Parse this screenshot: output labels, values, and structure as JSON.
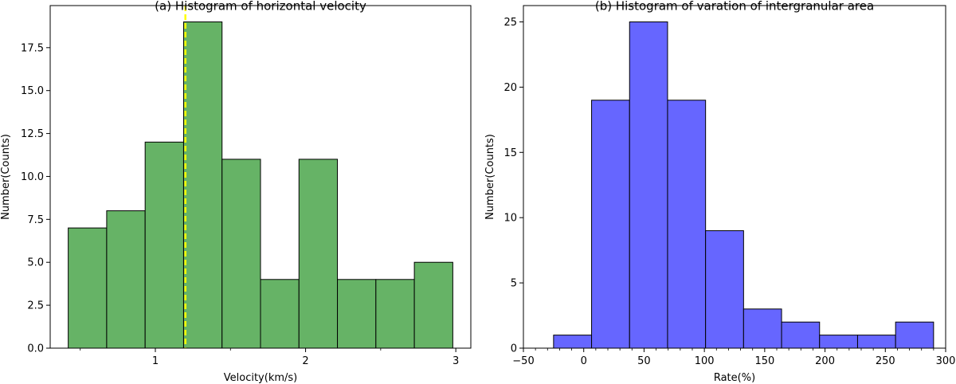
{
  "chart_data": [
    {
      "type": "bar",
      "title": "(a) Histogram of horizontal velocity",
      "xlabel": "Velocity(km/s)",
      "ylabel": "Number(Counts)",
      "bin_edges": [
        0.42,
        0.676,
        0.932,
        1.188,
        1.444,
        1.7,
        1.956,
        2.212,
        2.468,
        2.724,
        2.98
      ],
      "values": [
        7,
        8,
        12,
        19,
        11,
        4,
        11,
        4,
        4,
        5
      ],
      "xlim": [
        0.3,
        3.1
      ],
      "ylim": [
        0,
        19.95
      ],
      "xticks": [
        1,
        2,
        3
      ],
      "xtick_labels": [
        "1",
        "2",
        "3"
      ],
      "yticks": [
        0,
        2.5,
        5,
        7.5,
        10,
        12.5,
        15,
        17.5
      ],
      "ytick_labels": [
        "0.0",
        "2.5",
        "5.0",
        "7.5",
        "10.0",
        "12.5",
        "15.0",
        "17.5"
      ],
      "xminor": [
        0.5,
        1.5,
        2.5
      ],
      "vline": 1.2,
      "bar_color": "#66b366",
      "vline_color": "#ffff00",
      "grid": false
    },
    {
      "type": "bar",
      "title": "(b) Histogram of varation of intergranular area",
      "xlabel": "Rate(%)",
      "ylabel": "Number(Counts)",
      "bin_edges": [
        -25,
        6.5,
        38,
        69.5,
        101,
        132.5,
        164,
        195.5,
        227,
        258.5,
        290
      ],
      "values": [
        1,
        19,
        25,
        19,
        9,
        3,
        2,
        1,
        1,
        2
      ],
      "xlim": [
        -50,
        300
      ],
      "ylim": [
        0,
        26.25
      ],
      "xticks": [
        -50,
        0,
        50,
        100,
        150,
        200,
        250,
        300
      ],
      "xtick_labels": [
        "−50",
        "0",
        "50",
        "100",
        "150",
        "200",
        "250",
        "300"
      ],
      "yticks": [
        0,
        5,
        10,
        15,
        20,
        25
      ],
      "ytick_labels": [
        "0",
        "5",
        "10",
        "15",
        "20",
        "25"
      ],
      "xminor": [
        -40,
        -30,
        -20,
        -10,
        10,
        20,
        30,
        40,
        60,
        70,
        80,
        90,
        110,
        120,
        130,
        140,
        160,
        170,
        180,
        190,
        210,
        220,
        230,
        240,
        260,
        270,
        280,
        290
      ],
      "bar_color": "#6666ff",
      "grid": false
    }
  ]
}
